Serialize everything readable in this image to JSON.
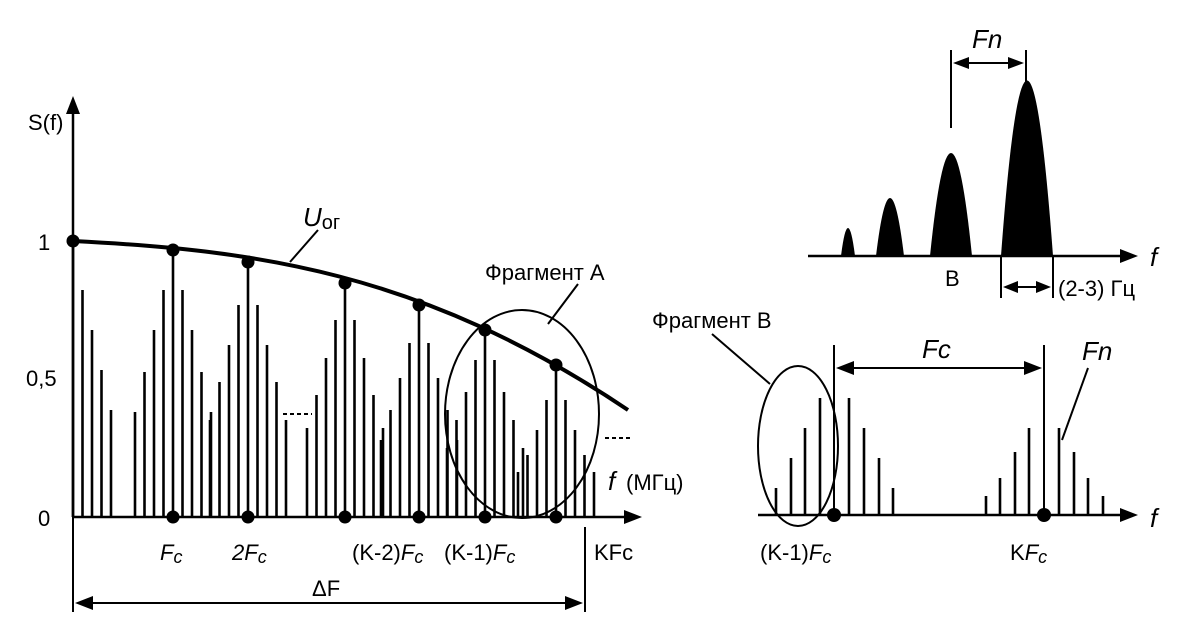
{
  "left": {
    "y_axis_label": "S(f)",
    "y_ticks": [
      "1",
      "0,5",
      "0"
    ],
    "x_axis_label_f": "f",
    "x_axis_label_unit": "(МГц)",
    "envelope_label_main": "U",
    "envelope_label_sub": "ог",
    "fragment_a_label": "Фрагмент А",
    "x_ticks": [
      {
        "f": "F",
        "sub": "c"
      },
      {
        "f": "2F",
        "sub": "c"
      },
      {
        "pre": "(K-2)",
        "f": "F",
        "sub": "c"
      },
      {
        "pre": "(K-1)",
        "f": "F",
        "sub": "c"
      },
      {
        "text": "KFc"
      }
    ],
    "delta_label": "ΔF"
  },
  "top_right": {
    "fn_label": "Fn",
    "b_label": "В",
    "width_label": "(2-3) Гц",
    "axis_label": "f"
  },
  "bottom_right": {
    "fragment_b_label": "Фрагмент В",
    "fc_label": "Fc",
    "fn_label": "Fn",
    "tick_left": {
      "pre": "(K-1)",
      "f": "F",
      "sub": "c"
    },
    "tick_right": {
      "pre": "K",
      "f": "F",
      "sub": "c"
    },
    "axis_label": "f"
  }
}
